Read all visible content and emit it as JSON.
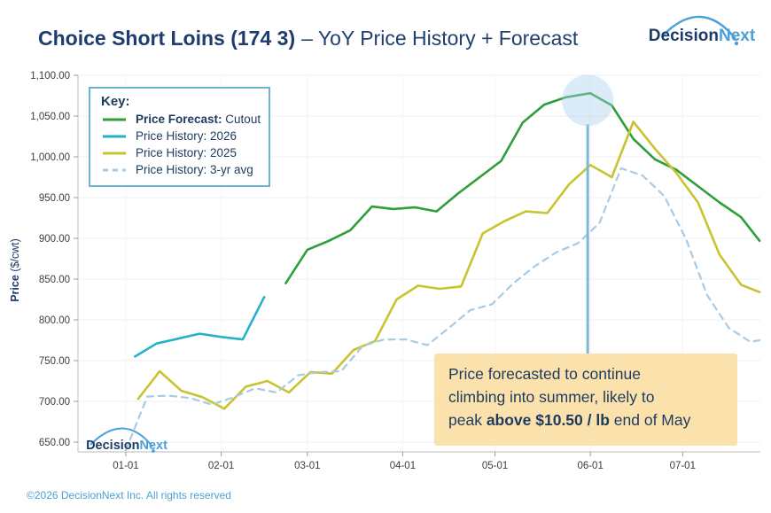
{
  "title": {
    "bold": "Choice Short Loins (174 3)",
    "rest": "– YoY Price History + Forecast"
  },
  "brand": {
    "dark": "Decision",
    "light": "Next"
  },
  "watermark": {
    "dark": "Decision",
    "light": "Next"
  },
  "footer": {
    "copyright": "©2026 DecisionNext Inc. All rights reserved"
  },
  "axis": {
    "y_label_bold": "Price",
    "y_label_unit": "($/cwt)"
  },
  "legend": {
    "title": "Key:",
    "items": [
      {
        "label_bold": "Price Forecast:",
        "label": " Cutout",
        "color": "#2e9e39",
        "dash": false
      },
      {
        "label_bold": "",
        "label": "Price History: 2026",
        "color": "#26b1c9",
        "dash": false
      },
      {
        "label_bold": "",
        "label": "Price History: 2025",
        "color": "#c9c32f",
        "dash": false
      },
      {
        "label_bold": "",
        "label": "Price History: 3-yr avg",
        "color": "#a7cbe5",
        "dash": true
      }
    ]
  },
  "annotation": {
    "line1": "Price forecasted to continue",
    "line2": "climbing into summer, likely to",
    "line3_pre": "peak ",
    "line3_bold": "above $10.50 / lb",
    "line3_post": " end of May"
  },
  "chart_data": {
    "type": "line",
    "title": "Choice Short Loins (174 3) – YoY Price History + Forecast",
    "xlabel": "",
    "ylabel": "Price ($/cwt)",
    "ylim": [
      650,
      1100
    ],
    "grid": true,
    "legend_position": "top-left",
    "y_ticks": [
      {
        "v": 650,
        "label": "650.00"
      },
      {
        "v": 700,
        "label": "700.00"
      },
      {
        "v": 750,
        "label": "750.00"
      },
      {
        "v": 800,
        "label": "800.00"
      },
      {
        "v": 850,
        "label": "850.00"
      },
      {
        "v": 900,
        "label": "900.00"
      },
      {
        "v": 950,
        "label": "950.00"
      },
      {
        "v": 1000,
        "label": "1,000.00"
      },
      {
        "v": 1050,
        "label": "1,050.00"
      },
      {
        "v": 1100,
        "label": "1,100.00"
      }
    ],
    "x_ticks": [
      {
        "day": 0,
        "label": "01-01"
      },
      {
        "day": 31,
        "label": "02-01"
      },
      {
        "day": 59,
        "label": "03-01"
      },
      {
        "day": 90,
        "label": "04-01"
      },
      {
        "day": 120,
        "label": "05-01"
      },
      {
        "day": 151,
        "label": "06-01"
      },
      {
        "day": 181,
        "label": "07-01"
      }
    ],
    "series": [
      {
        "name": "Price Forecast: Cutout",
        "color": "#2e9e39",
        "dash": null,
        "width": 2.6,
        "days": [
          52,
          59,
          66,
          73,
          80,
          87,
          94,
          101,
          108,
          115,
          122,
          129,
          136,
          143,
          151,
          158,
          165,
          172,
          179,
          186,
          193,
          200,
          206
        ],
        "values": [
          845,
          886,
          897,
          910,
          939,
          936,
          938,
          933,
          955,
          975,
          995,
          1042,
          1064,
          1073,
          1078,
          1063,
          1022,
          997,
          984,
          964,
          944,
          926,
          897
        ]
      },
      {
        "name": "Price History: 2026",
        "color": "#26b1c9",
        "dash": null,
        "width": 2.6,
        "days": [
          3,
          10,
          17,
          24,
          31,
          38,
          45
        ],
        "values": [
          755,
          771,
          777,
          783,
          779,
          776,
          828
        ]
      },
      {
        "name": "Price History: 2025",
        "color": "#c9c32f",
        "dash": null,
        "width": 2.6,
        "days": [
          4,
          11,
          18,
          25,
          32,
          39,
          46,
          53,
          60,
          67,
          74,
          81,
          88,
          95,
          102,
          109,
          116,
          123,
          130,
          137,
          144,
          151,
          158,
          165,
          172,
          179,
          186,
          193,
          200,
          206
        ],
        "values": [
          703,
          737,
          713,
          705,
          691,
          718,
          725,
          711,
          736,
          734,
          763,
          774,
          825,
          842,
          838,
          841,
          906,
          921,
          933,
          931,
          966,
          990,
          975,
          1043,
          1010,
          980,
          944,
          880,
          843,
          834
        ]
      },
      {
        "name": "Price History: 3-yr avg",
        "color": "#a7cbe5",
        "dash": "7,6",
        "width": 2.2,
        "days": [
          0,
          7,
          14,
          21,
          28,
          35,
          42,
          49,
          56,
          63,
          70,
          77,
          84,
          91,
          98,
          105,
          112,
          119,
          126,
          133,
          140,
          147,
          154,
          161,
          168,
          175,
          182,
          189,
          196,
          203,
          206
        ],
        "values": [
          640,
          706,
          707,
          704,
          696,
          705,
          716,
          711,
          732,
          736,
          737,
          768,
          776,
          776,
          769,
          790,
          812,
          819,
          845,
          866,
          883,
          894,
          919,
          986,
          977,
          952,
          900,
          830,
          790,
          773,
          775
        ]
      }
    ],
    "highlight": {
      "day": 151,
      "value": 1078,
      "radius": 29,
      "circle_color": "rgba(171,208,238,0.42)",
      "line_color": "#7db8da",
      "line_bottom_y": 402
    }
  }
}
